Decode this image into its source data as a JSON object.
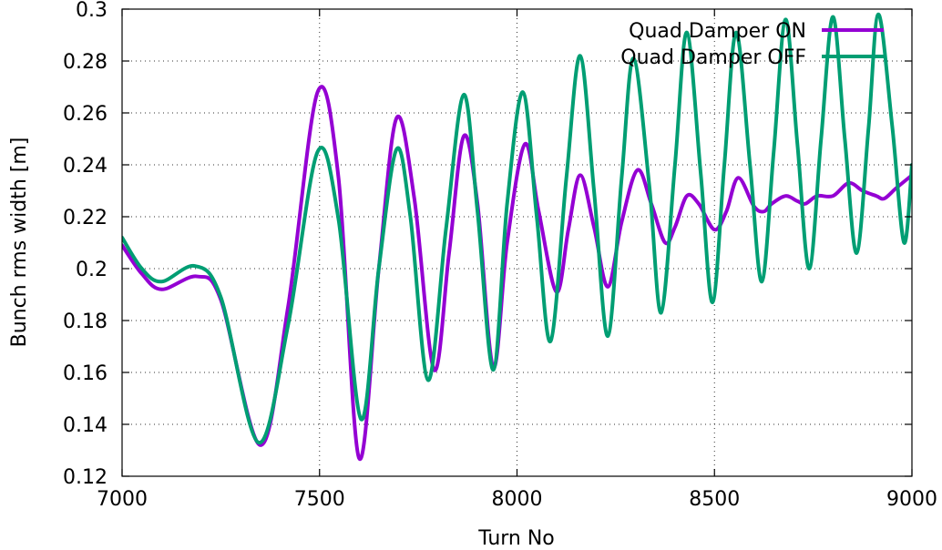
{
  "chart_data": {
    "type": "line",
    "title": "",
    "xlabel": "Turn No",
    "ylabel": "Bunch rms width [m]",
    "xlim": [
      7000,
      9000
    ],
    "ylim": [
      0.12,
      0.3
    ],
    "grid": true,
    "legend_position": "top-right",
    "x_ticks": [
      "7000",
      "7500",
      "8000",
      "8500",
      "9000"
    ],
    "y_ticks": [
      "0.12",
      "0.14",
      "0.16",
      "0.18",
      "0.2",
      "0.22",
      "0.24",
      "0.26",
      "0.28",
      "0.3"
    ],
    "series": [
      {
        "name": "Quad Damper ON",
        "color": "#9400d3",
        "points": [
          [
            7000,
            0.209
          ],
          [
            7050,
            0.198
          ],
          [
            7100,
            0.192
          ],
          [
            7190,
            0.197
          ],
          [
            7250,
            0.188
          ],
          [
            7350,
            0.132
          ],
          [
            7420,
            0.185
          ],
          [
            7495,
            0.268
          ],
          [
            7548,
            0.235
          ],
          [
            7600,
            0.127
          ],
          [
            7650,
            0.2
          ],
          [
            7695,
            0.258
          ],
          [
            7740,
            0.227
          ],
          [
            7790,
            0.161
          ],
          [
            7828,
            0.206
          ],
          [
            7865,
            0.251
          ],
          [
            7900,
            0.225
          ],
          [
            7940,
            0.162
          ],
          [
            7975,
            0.21
          ],
          [
            8020,
            0.248
          ],
          [
            8055,
            0.222
          ],
          [
            8100,
            0.191
          ],
          [
            8130,
            0.215
          ],
          [
            8160,
            0.236
          ],
          [
            8195,
            0.216
          ],
          [
            8230,
            0.193
          ],
          [
            8265,
            0.218
          ],
          [
            8305,
            0.238
          ],
          [
            8340,
            0.225
          ],
          [
            8375,
            0.21
          ],
          [
            8400,
            0.216
          ],
          [
            8430,
            0.228
          ],
          [
            8460,
            0.225
          ],
          [
            8500,
            0.215
          ],
          [
            8530,
            0.222
          ],
          [
            8560,
            0.235
          ],
          [
            8600,
            0.224
          ],
          [
            8625,
            0.222
          ],
          [
            8645,
            0.225
          ],
          [
            8680,
            0.228
          ],
          [
            8710,
            0.226
          ],
          [
            8730,
            0.225
          ],
          [
            8760,
            0.228
          ],
          [
            8800,
            0.228
          ],
          [
            8840,
            0.233
          ],
          [
            8875,
            0.23
          ],
          [
            8910,
            0.228
          ],
          [
            8930,
            0.227
          ],
          [
            8960,
            0.231
          ],
          [
            9000,
            0.236
          ]
        ]
      },
      {
        "name": "Quad Damper OFF",
        "color": "#009e73",
        "points": [
          [
            7000,
            0.212
          ],
          [
            7050,
            0.2
          ],
          [
            7100,
            0.195
          ],
          [
            7185,
            0.201
          ],
          [
            7250,
            0.189
          ],
          [
            7345,
            0.133
          ],
          [
            7420,
            0.178
          ],
          [
            7495,
            0.245
          ],
          [
            7548,
            0.219
          ],
          [
            7605,
            0.142
          ],
          [
            7650,
            0.2
          ],
          [
            7695,
            0.246
          ],
          [
            7730,
            0.22
          ],
          [
            7775,
            0.157
          ],
          [
            7820,
            0.215
          ],
          [
            7865,
            0.267
          ],
          [
            7900,
            0.222
          ],
          [
            7940,
            0.161
          ],
          [
            7975,
            0.225
          ],
          [
            8015,
            0.268
          ],
          [
            8050,
            0.22
          ],
          [
            8085,
            0.172
          ],
          [
            8125,
            0.235
          ],
          [
            8160,
            0.282
          ],
          [
            8195,
            0.23
          ],
          [
            8230,
            0.174
          ],
          [
            8265,
            0.235
          ],
          [
            8295,
            0.281
          ],
          [
            8335,
            0.232
          ],
          [
            8365,
            0.183
          ],
          [
            8400,
            0.24
          ],
          [
            8430,
            0.291
          ],
          [
            8465,
            0.237
          ],
          [
            8495,
            0.187
          ],
          [
            8525,
            0.24
          ],
          [
            8555,
            0.291
          ],
          [
            8590,
            0.24
          ],
          [
            8620,
            0.195
          ],
          [
            8650,
            0.245
          ],
          [
            8680,
            0.296
          ],
          [
            8710,
            0.248
          ],
          [
            8740,
            0.2
          ],
          [
            8770,
            0.25
          ],
          [
            8800,
            0.297
          ],
          [
            8830,
            0.25
          ],
          [
            8860,
            0.206
          ],
          [
            8890,
            0.254
          ],
          [
            8915,
            0.298
          ],
          [
            8950,
            0.255
          ],
          [
            8980,
            0.21
          ],
          [
            9000,
            0.24
          ]
        ]
      }
    ]
  }
}
